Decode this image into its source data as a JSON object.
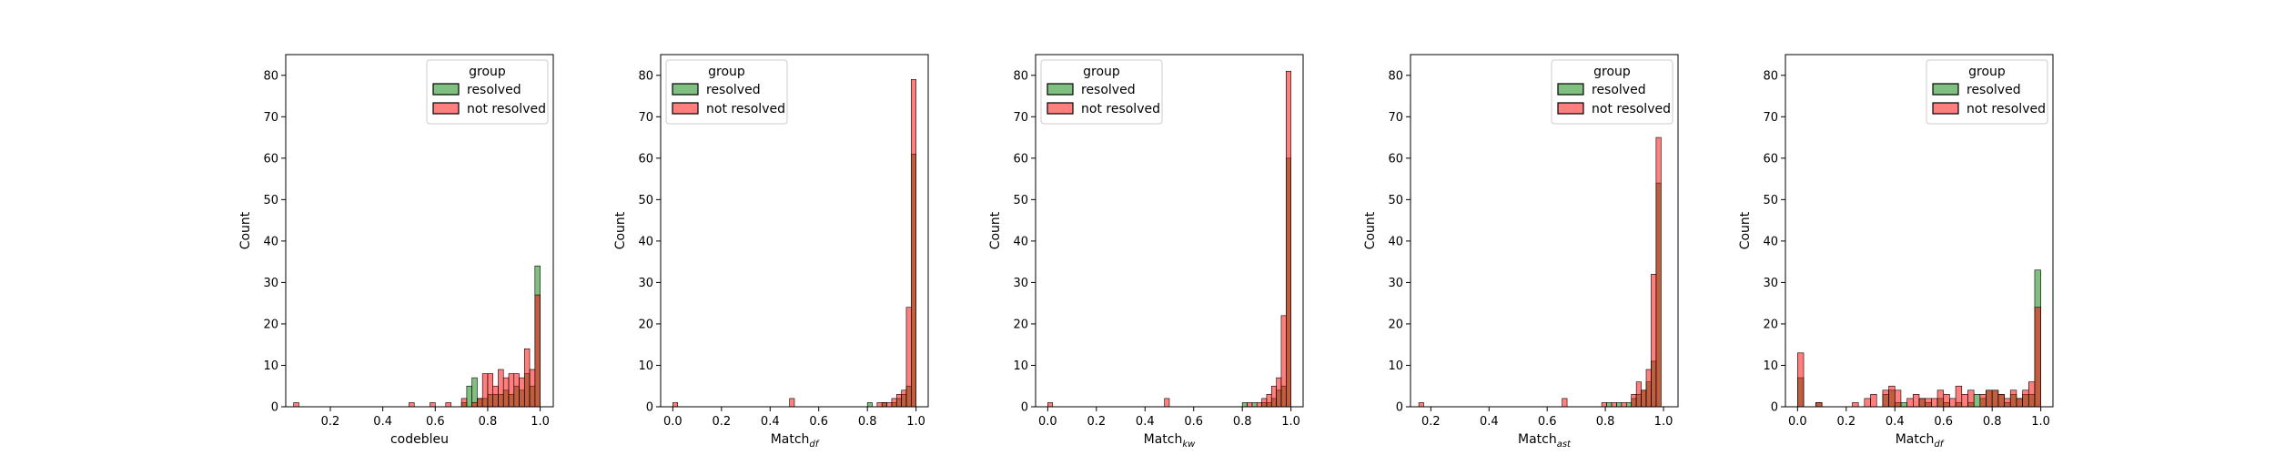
{
  "legend": {
    "title": "group",
    "entries": [
      {
        "label": "resolved",
        "color": "#008000"
      },
      {
        "label": "not resolved",
        "color": "#ff0000"
      }
    ]
  },
  "chart_data": [
    {
      "type": "histogram",
      "xlabel": "codebleu",
      "ylabel": "Count",
      "xlim": [
        0.03,
        1.05
      ],
      "ylim": [
        0,
        85
      ],
      "xticks": [
        0.2,
        0.4,
        0.6,
        0.8,
        1.0
      ],
      "xtick_labels": [
        "0.2",
        "0.4",
        "0.6",
        "0.8",
        "1.0"
      ],
      "yticks": [
        0,
        10,
        20,
        30,
        40,
        50,
        60,
        70,
        80
      ],
      "legend_position": "top-right",
      "bin_width": 0.02,
      "series": [
        {
          "name": "resolved",
          "bins": [
            [
              0.71,
              1
            ],
            [
              0.73,
              5
            ],
            [
              0.75,
              7
            ],
            [
              0.77,
              2
            ],
            [
              0.79,
              2
            ],
            [
              0.81,
              3
            ],
            [
              0.83,
              3
            ],
            [
              0.85,
              3
            ],
            [
              0.87,
              4
            ],
            [
              0.89,
              3
            ],
            [
              0.91,
              5
            ],
            [
              0.93,
              4
            ],
            [
              0.95,
              8
            ],
            [
              0.97,
              5
            ],
            [
              0.99,
              34
            ]
          ]
        },
        {
          "name": "not resolved",
          "bins": [
            [
              0.07,
              1
            ],
            [
              0.51,
              1
            ],
            [
              0.59,
              1
            ],
            [
              0.65,
              1
            ],
            [
              0.71,
              2
            ],
            [
              0.75,
              1
            ],
            [
              0.77,
              2
            ],
            [
              0.79,
              8
            ],
            [
              0.81,
              8
            ],
            [
              0.83,
              5
            ],
            [
              0.85,
              9
            ],
            [
              0.87,
              7
            ],
            [
              0.89,
              8
            ],
            [
              0.91,
              8
            ],
            [
              0.93,
              7
            ],
            [
              0.95,
              14
            ],
            [
              0.97,
              9
            ],
            [
              0.99,
              27
            ]
          ]
        }
      ]
    },
    {
      "type": "histogram",
      "xlabel": "Match",
      "xlabel_sub": "df",
      "ylabel": "Count",
      "xlim": [
        -0.05,
        1.05
      ],
      "ylim": [
        0,
        85
      ],
      "xticks": [
        0.0,
        0.2,
        0.4,
        0.6,
        0.8,
        1.0
      ],
      "xtick_labels": [
        "0.0",
        "0.2",
        "0.4",
        "0.6",
        "0.8",
        "1.0"
      ],
      "yticks": [
        0,
        10,
        20,
        30,
        40,
        50,
        60,
        70,
        80
      ],
      "legend_position": "top-left",
      "bin_width": 0.02,
      "series": [
        {
          "name": "resolved",
          "bins": [
            [
              0.81,
              1
            ],
            [
              0.87,
              1
            ],
            [
              0.91,
              1
            ],
            [
              0.93,
              2
            ],
            [
              0.95,
              3
            ],
            [
              0.97,
              5
            ],
            [
              0.99,
              61
            ]
          ]
        },
        {
          "name": "not resolved",
          "bins": [
            [
              0.01,
              1
            ],
            [
              0.49,
              2
            ],
            [
              0.85,
              1
            ],
            [
              0.87,
              1
            ],
            [
              0.89,
              1
            ],
            [
              0.91,
              2
            ],
            [
              0.93,
              3
            ],
            [
              0.95,
              4
            ],
            [
              0.97,
              24
            ],
            [
              0.99,
              79
            ]
          ]
        }
      ]
    },
    {
      "type": "histogram",
      "xlabel": "Match",
      "xlabel_sub": "kw",
      "ylabel": "Count",
      "xlim": [
        -0.05,
        1.05
      ],
      "ylim": [
        0,
        85
      ],
      "xticks": [
        0.0,
        0.2,
        0.4,
        0.6,
        0.8,
        1.0
      ],
      "xtick_labels": [
        "0.0",
        "0.2",
        "0.4",
        "0.6",
        "0.8",
        "1.0"
      ],
      "yticks": [
        0,
        10,
        20,
        30,
        40,
        50,
        60,
        70,
        80
      ],
      "legend_position": "top-left",
      "bin_width": 0.02,
      "series": [
        {
          "name": "resolved",
          "bins": [
            [
              0.81,
              1
            ],
            [
              0.85,
              1
            ],
            [
              0.89,
              1
            ],
            [
              0.91,
              1
            ],
            [
              0.93,
              2
            ],
            [
              0.95,
              4
            ],
            [
              0.97,
              5
            ],
            [
              0.99,
              60
            ]
          ]
        },
        {
          "name": "not resolved",
          "bins": [
            [
              0.01,
              1
            ],
            [
              0.49,
              2
            ],
            [
              0.83,
              1
            ],
            [
              0.87,
              1
            ],
            [
              0.89,
              2
            ],
            [
              0.91,
              3
            ],
            [
              0.93,
              5
            ],
            [
              0.95,
              7
            ],
            [
              0.97,
              22
            ],
            [
              0.99,
              81
            ]
          ]
        }
      ]
    },
    {
      "type": "histogram",
      "xlabel": "Match",
      "xlabel_sub": "ast",
      "ylabel": "Count",
      "xlim": [
        0.13,
        1.05
      ],
      "ylim": [
        0,
        85
      ],
      "xticks": [
        0.2,
        0.4,
        0.6,
        0.8,
        1.0
      ],
      "xtick_labels": [
        "0.2",
        "0.4",
        "0.6",
        "0.8",
        "1.0"
      ],
      "yticks": [
        0,
        10,
        20,
        30,
        40,
        50,
        60,
        70,
        80
      ],
      "legend_position": "top-right",
      "bin_width": 0.017,
      "series": [
        {
          "name": "resolved",
          "bins": [
            [
              0.813,
              1
            ],
            [
              0.847,
              1
            ],
            [
              0.881,
              1
            ],
            [
              0.898,
              2
            ],
            [
              0.915,
              3
            ],
            [
              0.932,
              4
            ],
            [
              0.949,
              6
            ],
            [
              0.966,
              11
            ],
            [
              0.983,
              54
            ]
          ]
        },
        {
          "name": "not resolved",
          "bins": [
            [
              0.167,
              1
            ],
            [
              0.66,
              2
            ],
            [
              0.796,
              1
            ],
            [
              0.83,
              1
            ],
            [
              0.864,
              1
            ],
            [
              0.898,
              3
            ],
            [
              0.915,
              6
            ],
            [
              0.932,
              4
            ],
            [
              0.949,
              9
            ],
            [
              0.966,
              32
            ],
            [
              0.983,
              65
            ]
          ]
        }
      ]
    },
    {
      "type": "histogram",
      "xlabel": "Match",
      "xlabel_sub": "df",
      "ylabel": "Count",
      "xlim": [
        -0.05,
        1.05
      ],
      "ylim": [
        0,
        85
      ],
      "xticks": [
        0.0,
        0.2,
        0.4,
        0.6,
        0.8,
        1.0
      ],
      "xtick_labels": [
        "0.0",
        "0.2",
        "0.4",
        "0.6",
        "0.8",
        "1.0"
      ],
      "yticks": [
        0,
        10,
        20,
        30,
        40,
        50,
        60,
        70,
        80
      ],
      "legend_position": "top-right",
      "bin_width": 0.025,
      "series": [
        {
          "name": "resolved",
          "bins": [
            [
              0.0125,
              7
            ],
            [
              0.0875,
              1
            ],
            [
              0.3625,
              3
            ],
            [
              0.3875,
              4
            ],
            [
              0.4125,
              1
            ],
            [
              0.4375,
              1
            ],
            [
              0.5125,
              2
            ],
            [
              0.5375,
              1
            ],
            [
              0.5875,
              2
            ],
            [
              0.6125,
              1
            ],
            [
              0.6625,
              1
            ],
            [
              0.7125,
              1
            ],
            [
              0.7375,
              3
            ],
            [
              0.7625,
              2
            ],
            [
              0.7875,
              4
            ],
            [
              0.8125,
              4
            ],
            [
              0.8375,
              3
            ],
            [
              0.8625,
              1
            ],
            [
              0.8875,
              3
            ],
            [
              0.9125,
              2
            ],
            [
              0.9375,
              3
            ],
            [
              0.9625,
              3
            ],
            [
              0.9875,
              33
            ]
          ]
        },
        {
          "name": "not resolved",
          "bins": [
            [
              0.0125,
              13
            ],
            [
              0.0875,
              1
            ],
            [
              0.2375,
              1
            ],
            [
              0.2875,
              2
            ],
            [
              0.3125,
              3
            ],
            [
              0.3625,
              4
            ],
            [
              0.3875,
              5
            ],
            [
              0.4125,
              4
            ],
            [
              0.4625,
              2
            ],
            [
              0.4875,
              3
            ],
            [
              0.5125,
              2
            ],
            [
              0.5375,
              2
            ],
            [
              0.5625,
              2
            ],
            [
              0.5875,
              4
            ],
            [
              0.6125,
              3
            ],
            [
              0.6375,
              2
            ],
            [
              0.6625,
              5
            ],
            [
              0.6875,
              3
            ],
            [
              0.7125,
              4
            ],
            [
              0.7625,
              3
            ],
            [
              0.7875,
              4
            ],
            [
              0.8125,
              4
            ],
            [
              0.8375,
              3
            ],
            [
              0.8625,
              2
            ],
            [
              0.8875,
              4
            ],
            [
              0.9125,
              2
            ],
            [
              0.9375,
              4
            ],
            [
              0.9625,
              6
            ],
            [
              0.9875,
              24
            ]
          ]
        }
      ]
    }
  ]
}
